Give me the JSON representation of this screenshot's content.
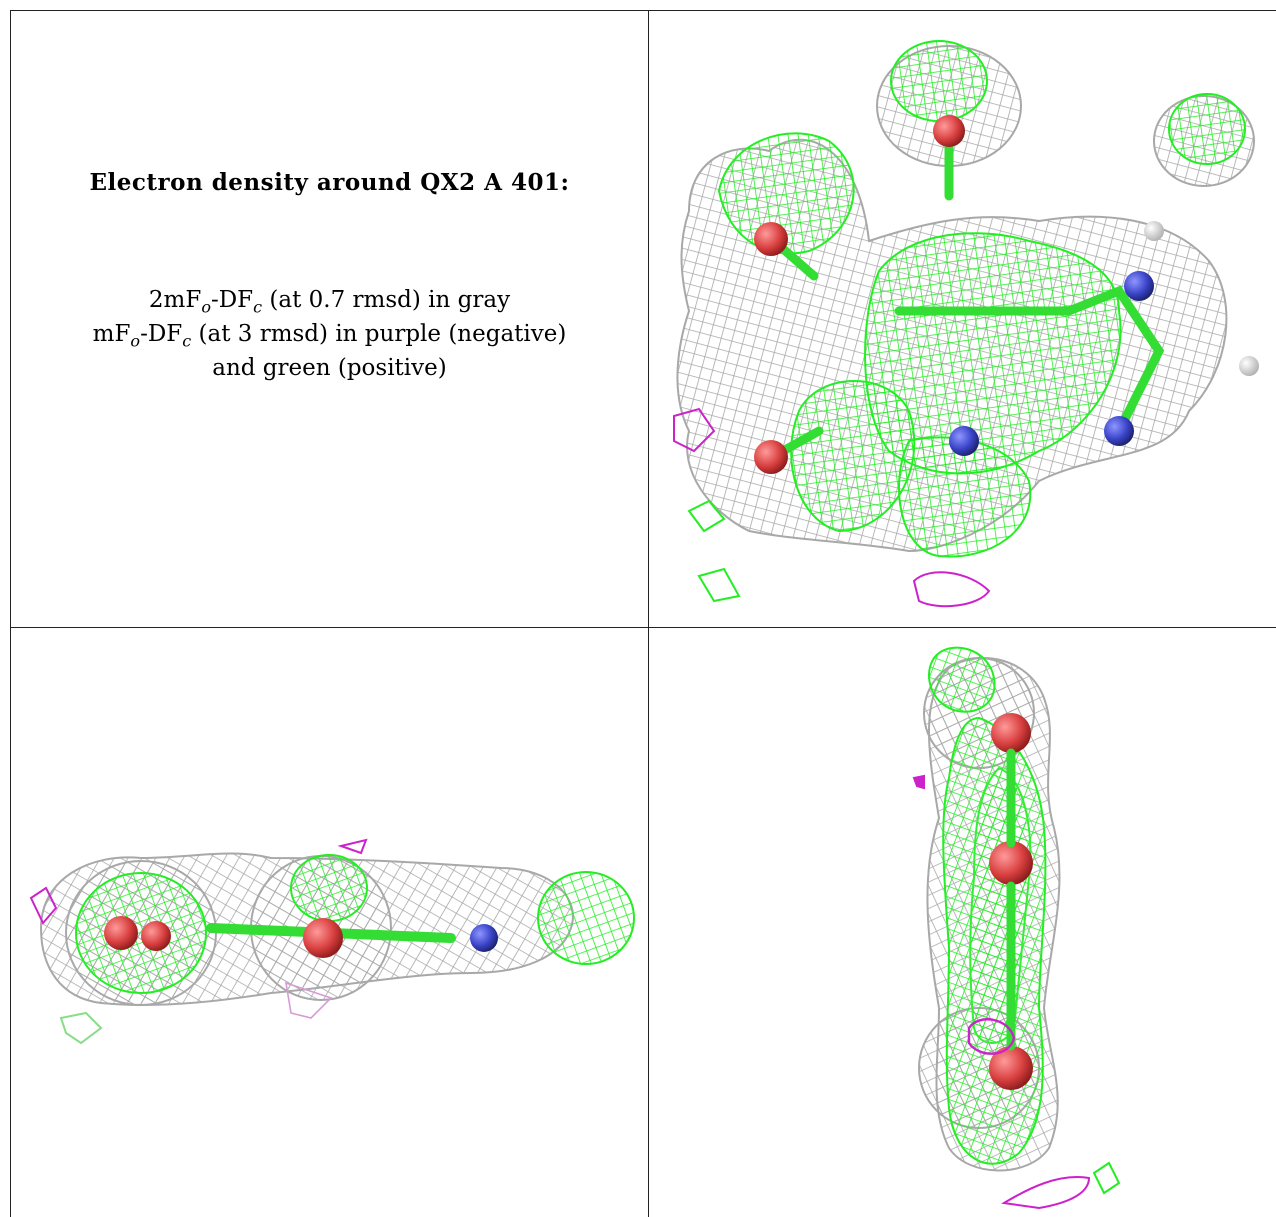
{
  "caption": {
    "title": "Electron density around QX2 A 401:",
    "line1": {
      "a": "2mF",
      "o": "o",
      "b": "-DF",
      "c": "c",
      "rest": " (at 0.7 rmsd) in gray"
    },
    "line2": {
      "a": "mF",
      "o": "o",
      "b": "-DF",
      "c": "c",
      "rest": " (at 3 rmsd) in purple (negative)"
    },
    "line3": "and green (positive)"
  },
  "colors": {
    "gray_mesh": "#a8a8a8",
    "green_mesh": "#22ee22",
    "purple_mesh": "#cc22cc",
    "oxygen": "#d94040",
    "nitrogen": "#3a44c8",
    "hydrogen": "#e8e8e8"
  },
  "panels": [
    {
      "name": "top-view"
    },
    {
      "name": "side-view"
    },
    {
      "name": "end-view"
    }
  ]
}
